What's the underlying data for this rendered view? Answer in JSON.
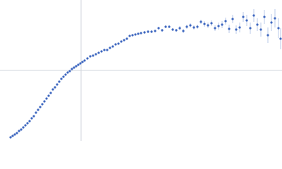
{
  "chart_data": {
    "type": "scatter",
    "color": "#3f68c0",
    "xlim": [
      0,
      400
    ],
    "ylim": [
      0,
      200
    ],
    "crosshair": {
      "x": 115,
      "y": 100
    },
    "x": [
      15,
      18,
      21,
      24,
      27,
      30,
      33,
      36,
      39,
      42,
      45,
      48,
      51,
      54,
      57,
      60,
      63,
      66,
      69,
      72,
      75,
      78,
      81,
      84,
      87,
      90,
      93,
      96,
      99,
      102,
      105,
      108,
      111,
      114,
      117,
      120,
      124,
      128,
      132,
      136,
      140,
      144,
      148,
      152,
      156,
      160,
      164,
      168,
      172,
      176,
      180,
      184,
      188,
      192,
      196,
      200,
      205,
      210,
      215,
      220,
      225,
      230,
      235,
      240,
      245,
      250,
      255,
      260,
      265,
      270,
      275,
      280,
      285,
      290,
      295,
      300,
      305,
      310,
      315,
      320,
      325,
      330,
      335,
      340,
      345,
      350,
      355,
      360,
      365,
      370,
      375,
      380,
      385,
      390,
      395,
      398
    ],
    "values": [
      5,
      7,
      9,
      11,
      14,
      16,
      19,
      22,
      25,
      28,
      32,
      35,
      40,
      44,
      48,
      52,
      56,
      60,
      64,
      68,
      73,
      76,
      80,
      84,
      88,
      91,
      94,
      97,
      99,
      102,
      104,
      106,
      108,
      110,
      112,
      114,
      117,
      120,
      121,
      123,
      125,
      127,
      129,
      129,
      132,
      134,
      137,
      138,
      141,
      143,
      145,
      149,
      150,
      151,
      152,
      153,
      154,
      155,
      155,
      156,
      160,
      157,
      162,
      162,
      158,
      157,
      160,
      156,
      162,
      164,
      161,
      162,
      169,
      166,
      164,
      167,
      160,
      163,
      165,
      170,
      159,
      173,
      158,
      161,
      176,
      171,
      160,
      178,
      165,
      158,
      176,
      150,
      168,
      174,
      160,
      145
    ],
    "errors": [
      1,
      1,
      1,
      1,
      1,
      1,
      1,
      1,
      1,
      1,
      1,
      1,
      1,
      1,
      1,
      1,
      1,
      1,
      1,
      1,
      1,
      1,
      1,
      1,
      1,
      1,
      1,
      1,
      1,
      1,
      1,
      1,
      1,
      1,
      1,
      1,
      1,
      1,
      1,
      1,
      1,
      1,
      1,
      1,
      1,
      1,
      1,
      1,
      1,
      1,
      1,
      1,
      1,
      1,
      1,
      1,
      2,
      2,
      2,
      2,
      2,
      2,
      2,
      2,
      2,
      2,
      3,
      3,
      3,
      3,
      3,
      3,
      3,
      4,
      4,
      4,
      4,
      5,
      5,
      5,
      6,
      6,
      6,
      7,
      7,
      8,
      8,
      9,
      9,
      10,
      10,
      11,
      12,
      13,
      14,
      15
    ]
  }
}
